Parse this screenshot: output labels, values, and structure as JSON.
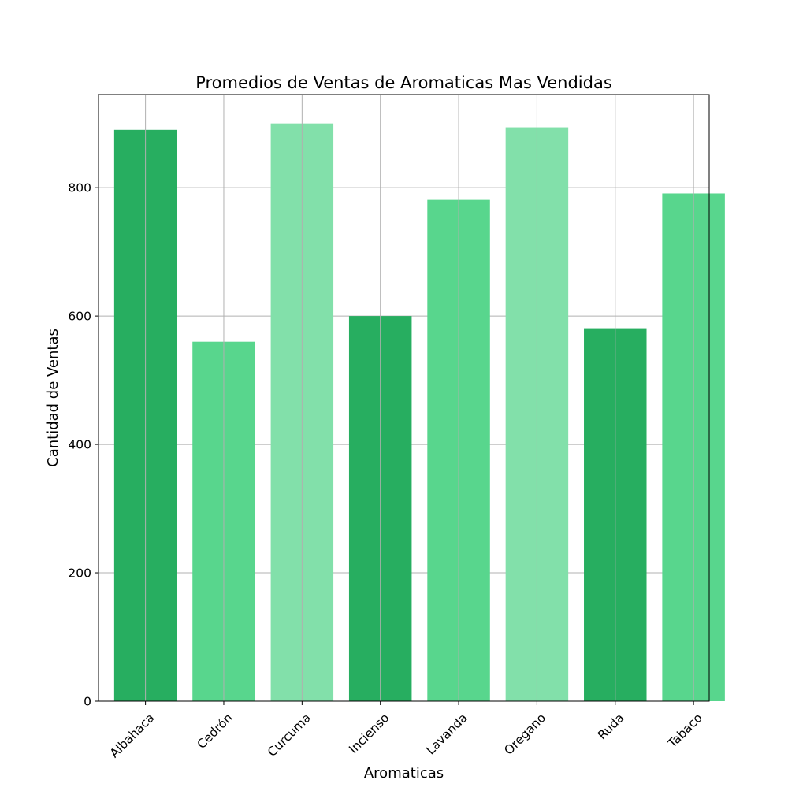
{
  "chart_data": {
    "type": "bar",
    "title": "Promedios de Ventas de Aromaticas Mas Vendidas",
    "xlabel": "Aromaticas",
    "ylabel": "Cantidad de Ventas",
    "categories": [
      "Albahaca",
      "Cedrón",
      "Curcuma",
      "Incienso",
      "Lavanda",
      "Oregano",
      "Ruda",
      "Tabaco"
    ],
    "values": [
      890,
      560,
      900,
      600,
      781,
      894,
      581,
      791
    ],
    "bar_colors": [
      "#27ae60",
      "#58d68d",
      "#82e0aa",
      "#27ae60",
      "#58d68d",
      "#82e0aa",
      "#27ae60",
      "#58d68d"
    ],
    "ylim": [
      0,
      945
    ],
    "yticks": [
      0,
      200,
      400,
      600,
      800
    ],
    "ytick_labels": [
      "0",
      "200",
      "400",
      "600",
      "800"
    ],
    "grid": true,
    "grid_color": "#b0b0b0"
  }
}
